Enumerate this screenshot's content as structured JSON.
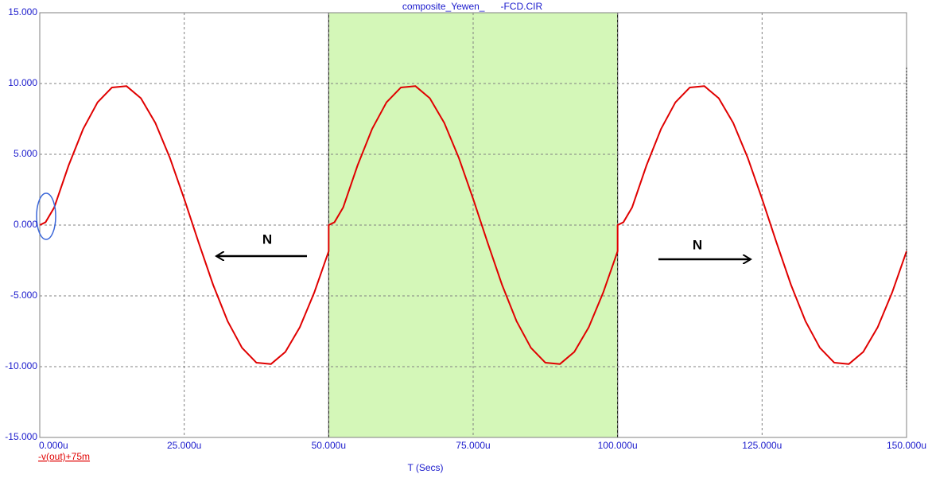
{
  "chart_data": {
    "type": "line",
    "title": "composite_Yewen_      -FCD.CIR",
    "x_label": "T (Secs)",
    "x": [
      0,
      1e-06,
      2.5e-06,
      5e-06,
      7.5e-06,
      1e-05,
      1.25e-05,
      1.5e-05,
      1.75e-05,
      2e-05,
      2.25e-05,
      2.5e-05,
      2.75e-05,
      3e-05,
      3.25e-05,
      3.5e-05,
      3.75e-05,
      4e-05,
      4.25e-05,
      4.5e-05,
      4.75e-05,
      5e-05,
      5e-05,
      5.1e-05,
      5.25e-05,
      5.5e-05,
      5.75e-05,
      6e-05,
      6.25e-05,
      6.5e-05,
      6.75e-05,
      7e-05,
      7.25e-05,
      7.5e-05,
      7.75e-05,
      8e-05,
      8.25e-05,
      8.5e-05,
      8.75e-05,
      9e-05,
      9.25e-05,
      9.5e-05,
      9.75e-05,
      0.0001,
      0.0001,
      0.000101,
      0.0001025,
      0.000105,
      0.0001075,
      0.00011,
      0.0001125,
      0.000115,
      0.0001175,
      0.00012,
      0.0001225,
      0.000125,
      0.0001275,
      0.00013,
      0.0001325,
      0.000135,
      0.0001375,
      0.00014,
      0.0001425,
      0.000145,
      0.0001475,
      0.00015
    ],
    "series": [
      {
        "name": "-v(out)+75m",
        "color": "#e00000",
        "values": [
          0,
          0.2,
          1.24,
          4.22,
          6.78,
          8.67,
          9.72,
          9.82,
          8.96,
          7.22,
          4.77,
          1.85,
          -1.24,
          -4.22,
          -6.78,
          -8.67,
          -9.72,
          -9.82,
          -8.96,
          -7.22,
          -4.77,
          -1.85,
          0,
          0.2,
          1.24,
          4.22,
          6.78,
          8.67,
          9.72,
          9.82,
          8.96,
          7.22,
          4.77,
          1.85,
          -1.24,
          -4.22,
          -6.78,
          -8.67,
          -9.72,
          -9.82,
          -8.96,
          -7.22,
          -4.77,
          -1.85,
          0,
          0.2,
          1.24,
          4.22,
          6.78,
          8.67,
          9.72,
          9.82,
          8.96,
          7.22,
          4.77,
          1.85,
          -1.24,
          -4.22,
          -6.78,
          -8.67,
          -9.72,
          -9.82,
          -8.96,
          -7.22,
          -4.77,
          -1.85
        ]
      }
    ],
    "xlim": [
      0,
      0.00015
    ],
    "xticks": [
      {
        "value": 0,
        "label": "0.000u"
      },
      {
        "value": 2.5e-05,
        "label": "25.000u"
      },
      {
        "value": 5e-05,
        "label": "50.000u"
      },
      {
        "value": 7.5e-05,
        "label": "75.000u"
      },
      {
        "value": 0.0001,
        "label": "100.000u"
      },
      {
        "value": 0.000125,
        "label": "125.000u"
      },
      {
        "value": 0.00015,
        "label": "150.000u"
      }
    ],
    "ylim": [
      -15,
      15
    ],
    "yticks": [
      {
        "value": -15,
        "label": "-15.000"
      },
      {
        "value": -10,
        "label": "-10.000"
      },
      {
        "value": -5,
        "label": "-5.000"
      },
      {
        "value": 0,
        "label": "0.000"
      },
      {
        "value": 5,
        "label": "5.000"
      },
      {
        "value": 10,
        "label": "10.000"
      },
      {
        "value": 15,
        "label": "15.000"
      }
    ],
    "grid": true,
    "highlight": {
      "range": [
        5e-05,
        0.0001
      ],
      "color": "#d4f7b8"
    },
    "annotations": [
      "N",
      "N"
    ]
  }
}
